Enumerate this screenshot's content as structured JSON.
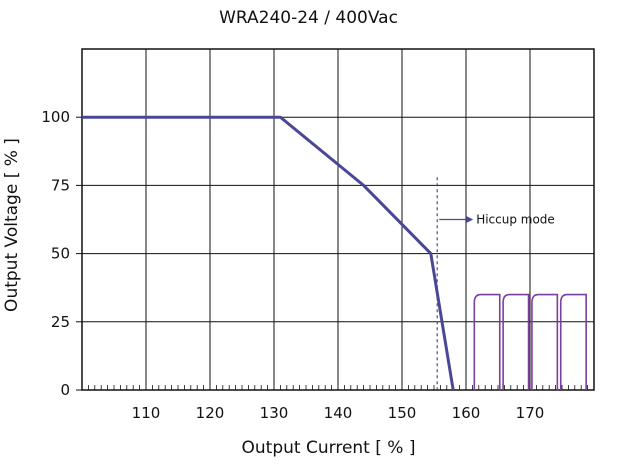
{
  "chart_data": {
    "type": "line",
    "title": "WRA240-24 / 400Vac",
    "xlabel": "Output Current [ % ]",
    "ylabel": "Output Voltage  [ % ]",
    "xlim": [
      100,
      180
    ],
    "ylim": [
      0,
      125
    ],
    "xticks": [
      "110",
      "120",
      "130",
      "140",
      "150",
      "160",
      "170"
    ],
    "yticks": [
      "0",
      "25",
      "50",
      "75",
      "100"
    ],
    "grid": true,
    "series": [
      {
        "x": [
          100,
          131,
          144,
          154.5,
          158
        ],
        "y": [
          100,
          100,
          75,
          50,
          0
        ],
        "color": "#4a4896"
      }
    ],
    "hiccup": {
      "marker_x": 155.5,
      "x_range": [
        161,
        179
      ],
      "peak": 35,
      "label": "Hiccup mode",
      "color": "#7a3fa0"
    }
  }
}
